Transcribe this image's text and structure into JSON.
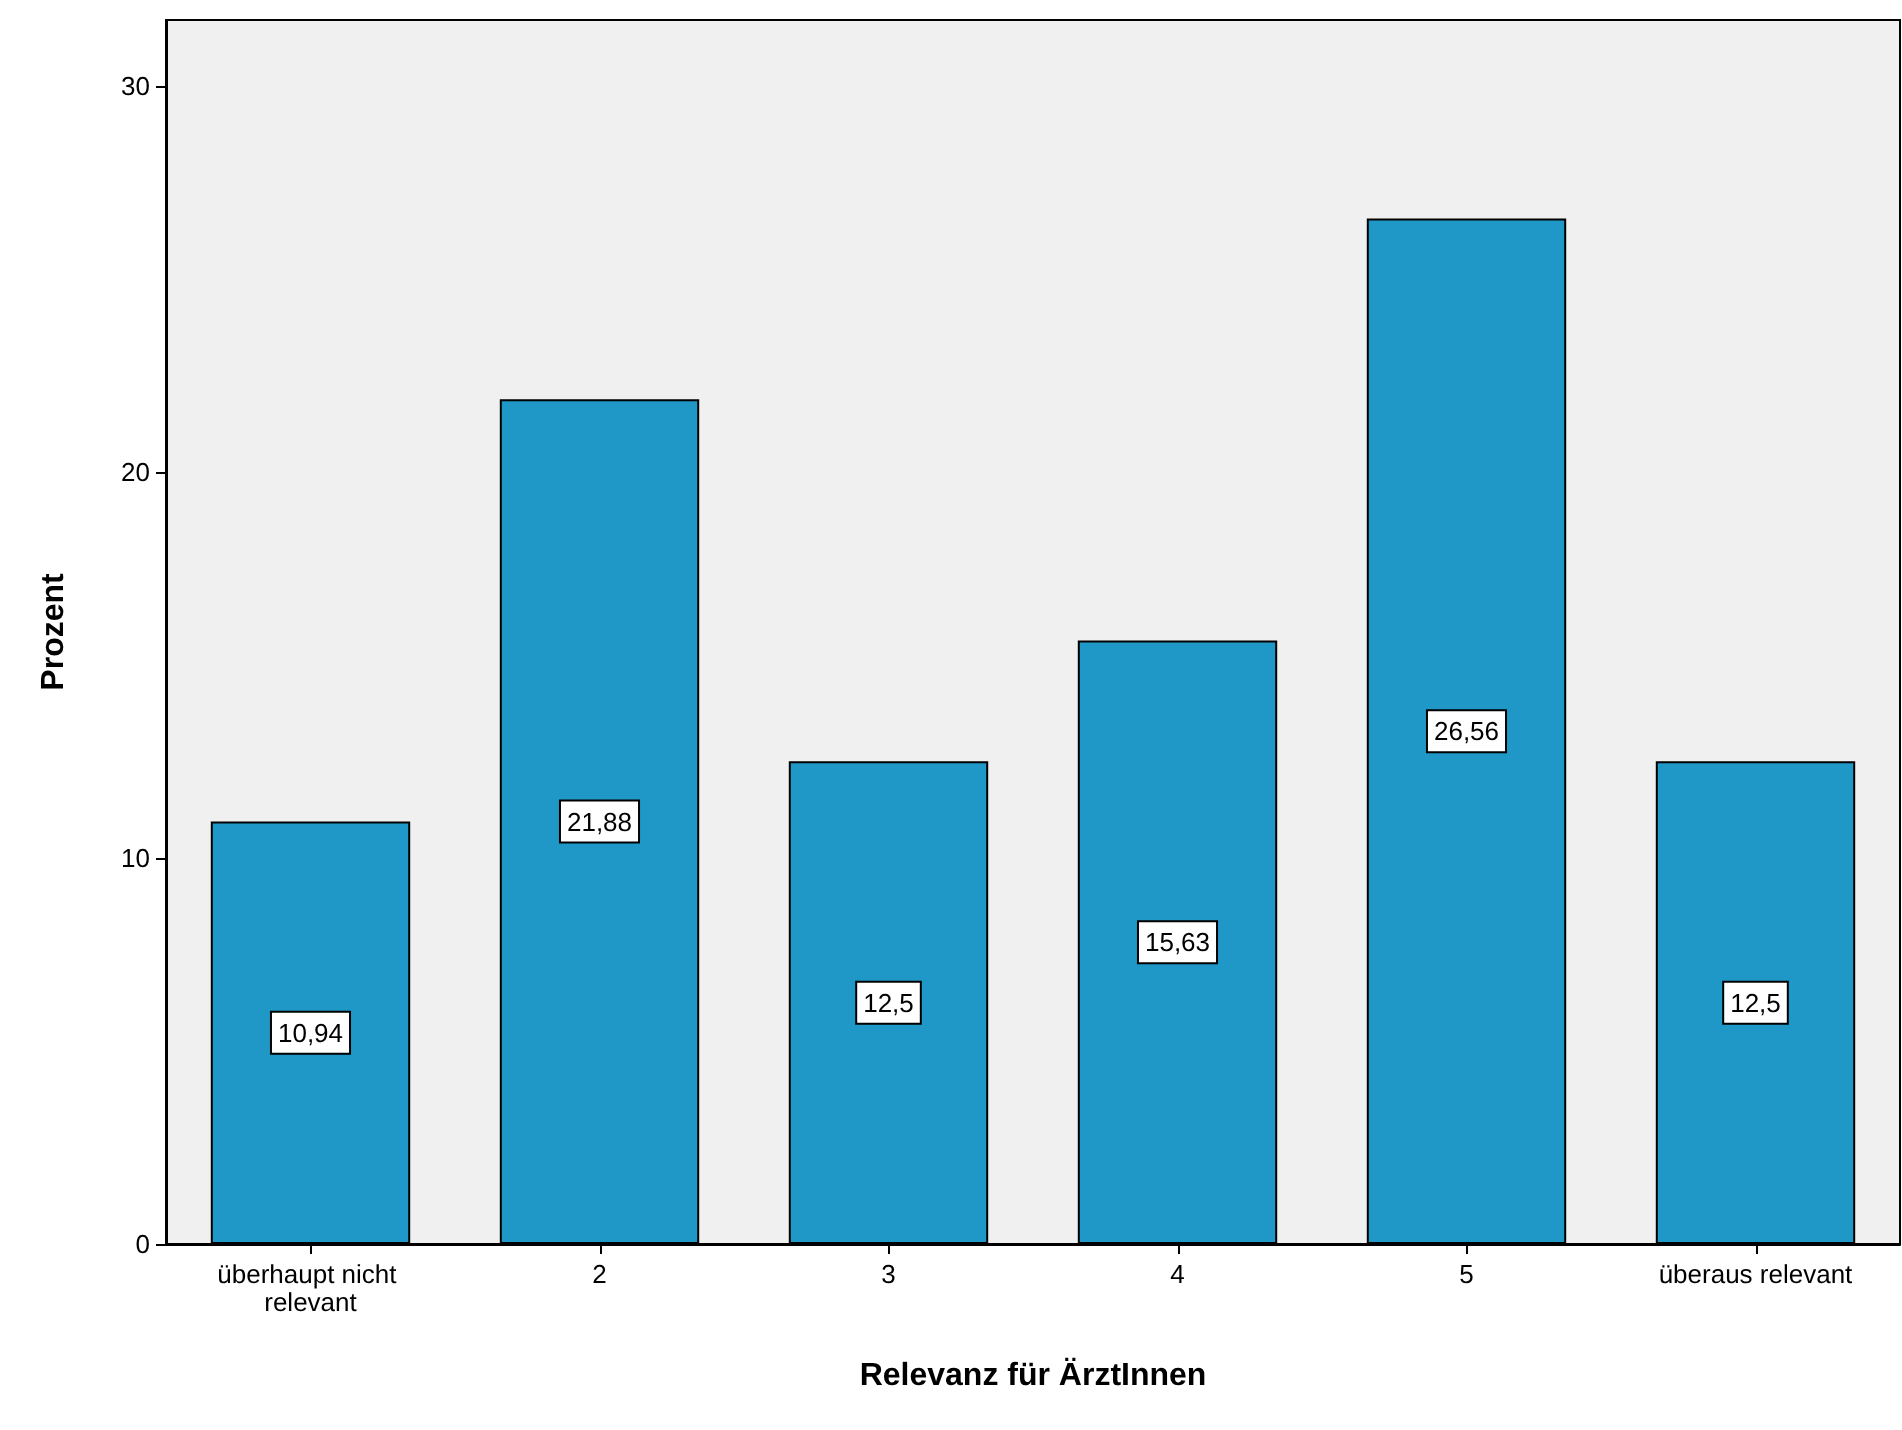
{
  "chart_data": {
    "type": "bar",
    "xlabel": "Relevanz für ÄrztInnen",
    "ylabel": "Prozent",
    "categories": [
      "überhaupt nicht relevant",
      "2",
      "3",
      "4",
      "5",
      "überaus relevant"
    ],
    "values": [
      10.94,
      21.88,
      12.5,
      15.63,
      26.56,
      12.5
    ],
    "value_labels": [
      "10,94",
      "21,88",
      "12,5",
      "15,63",
      "26,56",
      "12,5"
    ],
    "color": "#1f97c7",
    "ylim": [
      0,
      31.7
    ],
    "yticks": [
      0,
      10,
      20,
      30
    ],
    "grid": false
  }
}
